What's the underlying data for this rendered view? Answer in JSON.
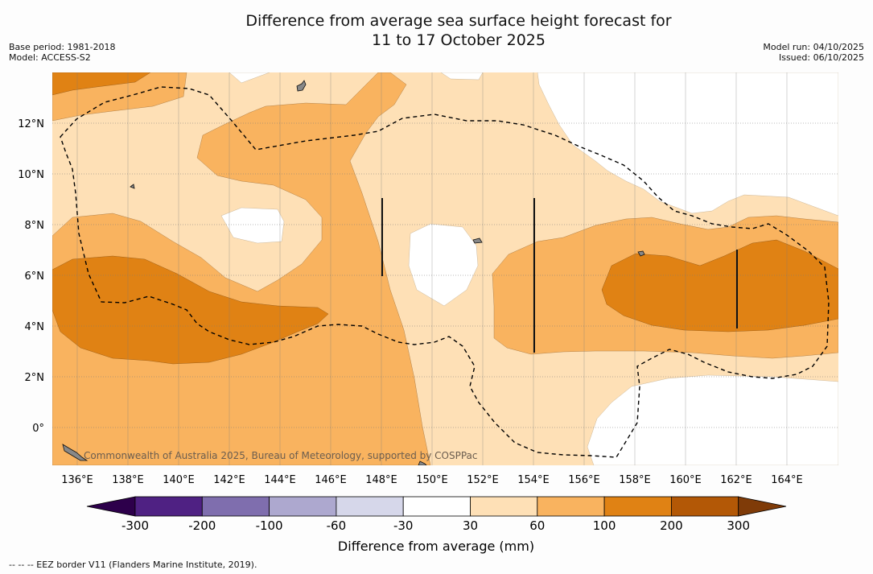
{
  "header": {
    "title_line1": "Difference from average sea surface height forecast for",
    "title_line2": "11 to 17 October 2025",
    "base_period": "Base period: 1981-2018",
    "model": "Model: ACCESS-S2",
    "model_run": "Model run: 04/10/2025",
    "issued": "Issued: 06/10/2025"
  },
  "map": {
    "lat_ticks": [
      "12°N",
      "10°N",
      "8°N",
      "6°N",
      "4°N",
      "2°N",
      "0°"
    ],
    "lon_ticks": [
      "136°E",
      "138°E",
      "140°E",
      "142°E",
      "144°E",
      "146°E",
      "148°E",
      "150°E",
      "152°E",
      "154°E",
      "156°E",
      "158°E",
      "160°E",
      "162°E",
      "164°E"
    ],
    "copyright": "Commonwealth of Australia 2025, Bureau of Meteorology, supported by COSPPac"
  },
  "colorbar": {
    "labels": [
      "-300",
      "-200",
      "-100",
      "-60",
      "-30",
      "30",
      "60",
      "100",
      "200",
      "300"
    ],
    "colors": [
      "#4f2183",
      "#7f6eae",
      "#ada8cf",
      "#d6d7ea",
      "#ffffff",
      "#fee0b6",
      "#f9b35f",
      "#e08214",
      "#b35806"
    ],
    "low_color": "#2d004b",
    "high_color": "#7f3b08",
    "title": "Difference from average (mm)"
  },
  "footer": {
    "eez_note": "--  --  -- EEZ border V11 (Flanders Marine Institute, 2019)."
  }
}
